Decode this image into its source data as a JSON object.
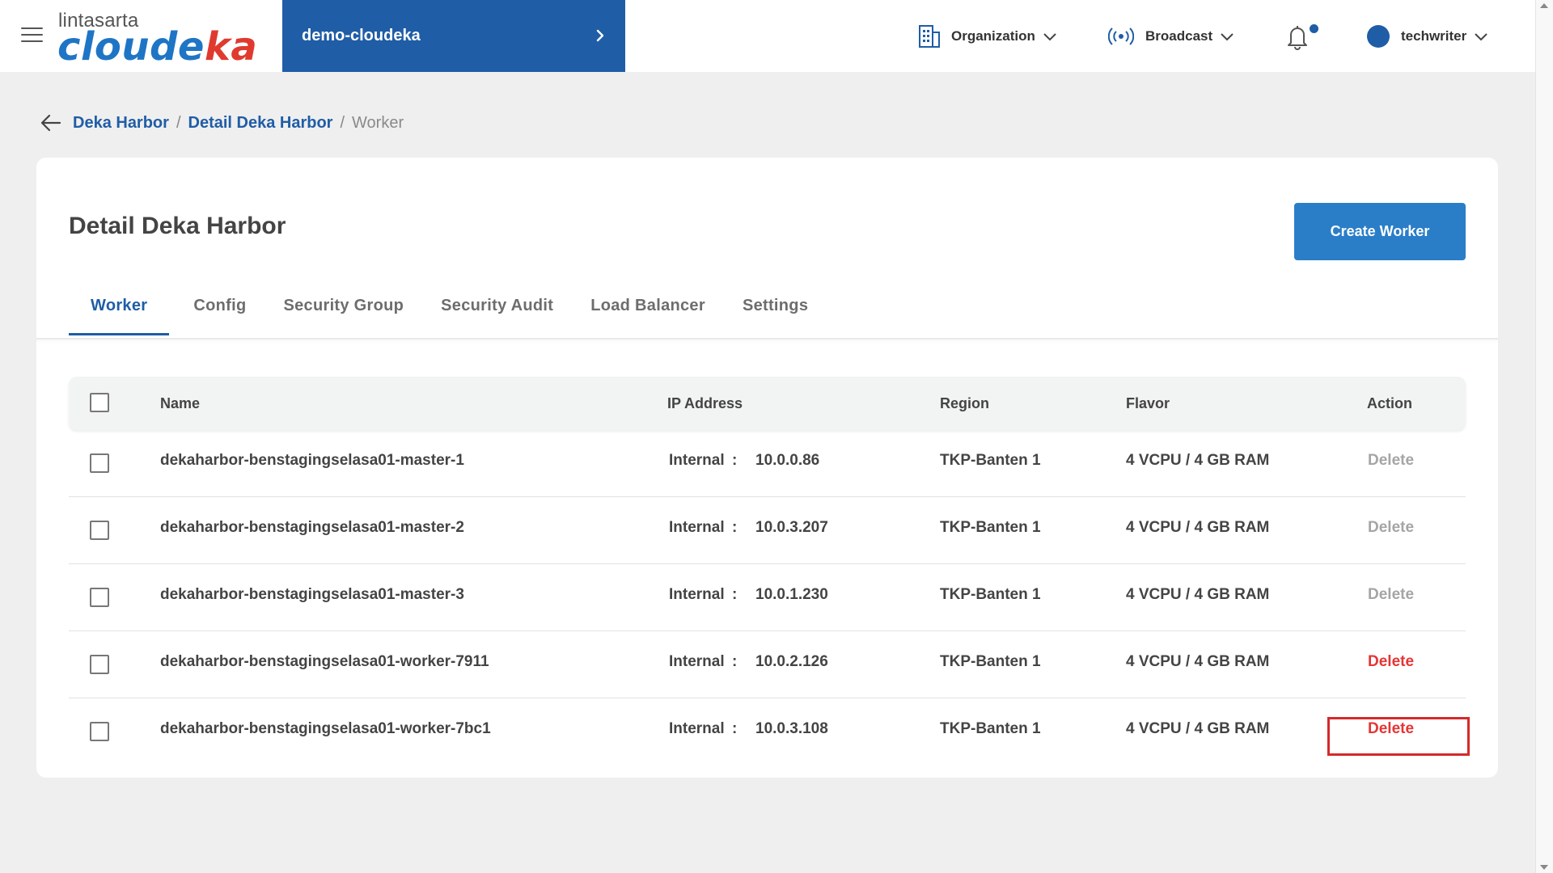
{
  "header": {
    "logo_top": "lintasarta",
    "logo_main_a": "cloude",
    "logo_main_b": "ka",
    "project": "demo-cloudeka",
    "organization_label": "Organization",
    "broadcast_label": "Broadcast",
    "user_name": "techwriter"
  },
  "breadcrumb": {
    "items": [
      "Deka Harbor",
      "Detail Deka Harbor",
      "Worker"
    ],
    "separator": "/"
  },
  "page": {
    "title": "Detail Deka Harbor",
    "create_button": "Create Worker"
  },
  "tabs": [
    "Worker",
    "Config",
    "Security Group",
    "Security Audit",
    "Load Balancer",
    "Settings"
  ],
  "active_tab": "Worker",
  "table": {
    "columns": [
      "Name",
      "IP Address",
      "Region",
      "Flavor",
      "Action"
    ],
    "rows": [
      {
        "name": "dekaharbor-benstagingselasa01-master-1",
        "ip_type": "Internal",
        "ip": "10.0.0.86",
        "region": "TKP-Banten 1",
        "flavor": "4 VCPU / 4 GB RAM",
        "action": "Delete",
        "action_enabled": false
      },
      {
        "name": "dekaharbor-benstagingselasa01-master-2",
        "ip_type": "Internal",
        "ip": "10.0.3.207",
        "region": "TKP-Banten 1",
        "flavor": "4 VCPU / 4 GB RAM",
        "action": "Delete",
        "action_enabled": false
      },
      {
        "name": "dekaharbor-benstagingselasa01-master-3",
        "ip_type": "Internal",
        "ip": "10.0.1.230",
        "region": "TKP-Banten 1",
        "flavor": "4 VCPU / 4 GB RAM",
        "action": "Delete",
        "action_enabled": false
      },
      {
        "name": "dekaharbor-benstagingselasa01-worker-7911",
        "ip_type": "Internal",
        "ip": "10.0.2.126",
        "region": "TKP-Banten 1",
        "flavor": "4 VCPU / 4 GB RAM",
        "action": "Delete",
        "action_enabled": true
      },
      {
        "name": "dekaharbor-benstagingselasa01-worker-7bc1",
        "ip_type": "Internal",
        "ip": "10.0.3.108",
        "region": "TKP-Banten 1",
        "flavor": "4 VCPU / 4 GB RAM",
        "action": "Delete",
        "action_enabled": true
      }
    ],
    "ip_separator": ":"
  },
  "colors": {
    "primary": "#1f5da6",
    "button": "#2a7ec8",
    "danger": "#e53535",
    "highlight_box": "#d42a2a"
  },
  "icons": [
    "menu-icon",
    "chevron-right-icon",
    "building-icon",
    "chevron-down-icon",
    "broadcast-icon",
    "bell-icon",
    "back-arrow-icon"
  ]
}
